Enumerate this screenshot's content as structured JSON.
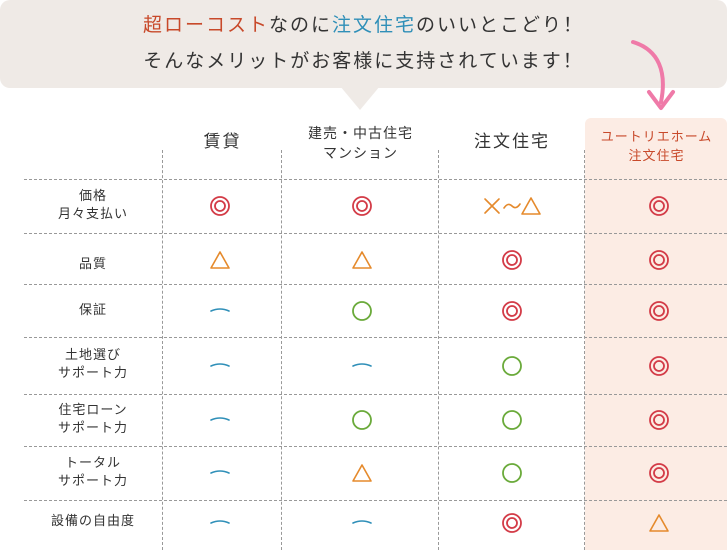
{
  "headline": {
    "line1_part1": "超ローコスト",
    "line1_part2": "なのに",
    "line1_part3": "注文住宅",
    "line1_part4": "のいいとこどり！",
    "line2": "そんなメリットがお客様に支持されています！"
  },
  "colors": {
    "accent_red": "#c8492a",
    "accent_blue": "#2f8fb8",
    "double_circle": "#d33b47",
    "triangle": "#e58a2c",
    "circle": "#6aaa3a",
    "dash": "#2f8fb8",
    "highlight_bg": "#fcece4"
  },
  "columns": [
    {
      "lines": [
        "賃貸"
      ]
    },
    {
      "lines": [
        "建売・中古住宅",
        "マンション"
      ]
    },
    {
      "lines": [
        "注文住宅"
      ]
    },
    {
      "lines": [
        "ユートリエホーム",
        "注文住宅"
      ]
    }
  ],
  "rows": [
    {
      "lines": [
        "価格",
        "月々支払い"
      ],
      "marks": [
        "double-circle",
        "double-circle",
        "cross-to-triangle",
        "double-circle"
      ]
    },
    {
      "lines": [
        "品質"
      ],
      "marks": [
        "triangle",
        "triangle",
        "double-circle",
        "double-circle"
      ]
    },
    {
      "lines": [
        "保証"
      ],
      "marks": [
        "dash",
        "circle",
        "double-circle",
        "double-circle"
      ]
    },
    {
      "lines": [
        "土地選び",
        "サポート力"
      ],
      "marks": [
        "dash",
        "dash",
        "circle",
        "double-circle"
      ]
    },
    {
      "lines": [
        "住宅ローン",
        "サポート力"
      ],
      "marks": [
        "dash",
        "circle",
        "circle",
        "double-circle"
      ]
    },
    {
      "lines": [
        "トータル",
        "サポート力"
      ],
      "marks": [
        "dash",
        "triangle",
        "circle",
        "double-circle"
      ]
    },
    {
      "lines": [
        "設備の自由度"
      ],
      "marks": [
        "dash",
        "dash",
        "double-circle",
        "triangle"
      ]
    }
  ]
}
